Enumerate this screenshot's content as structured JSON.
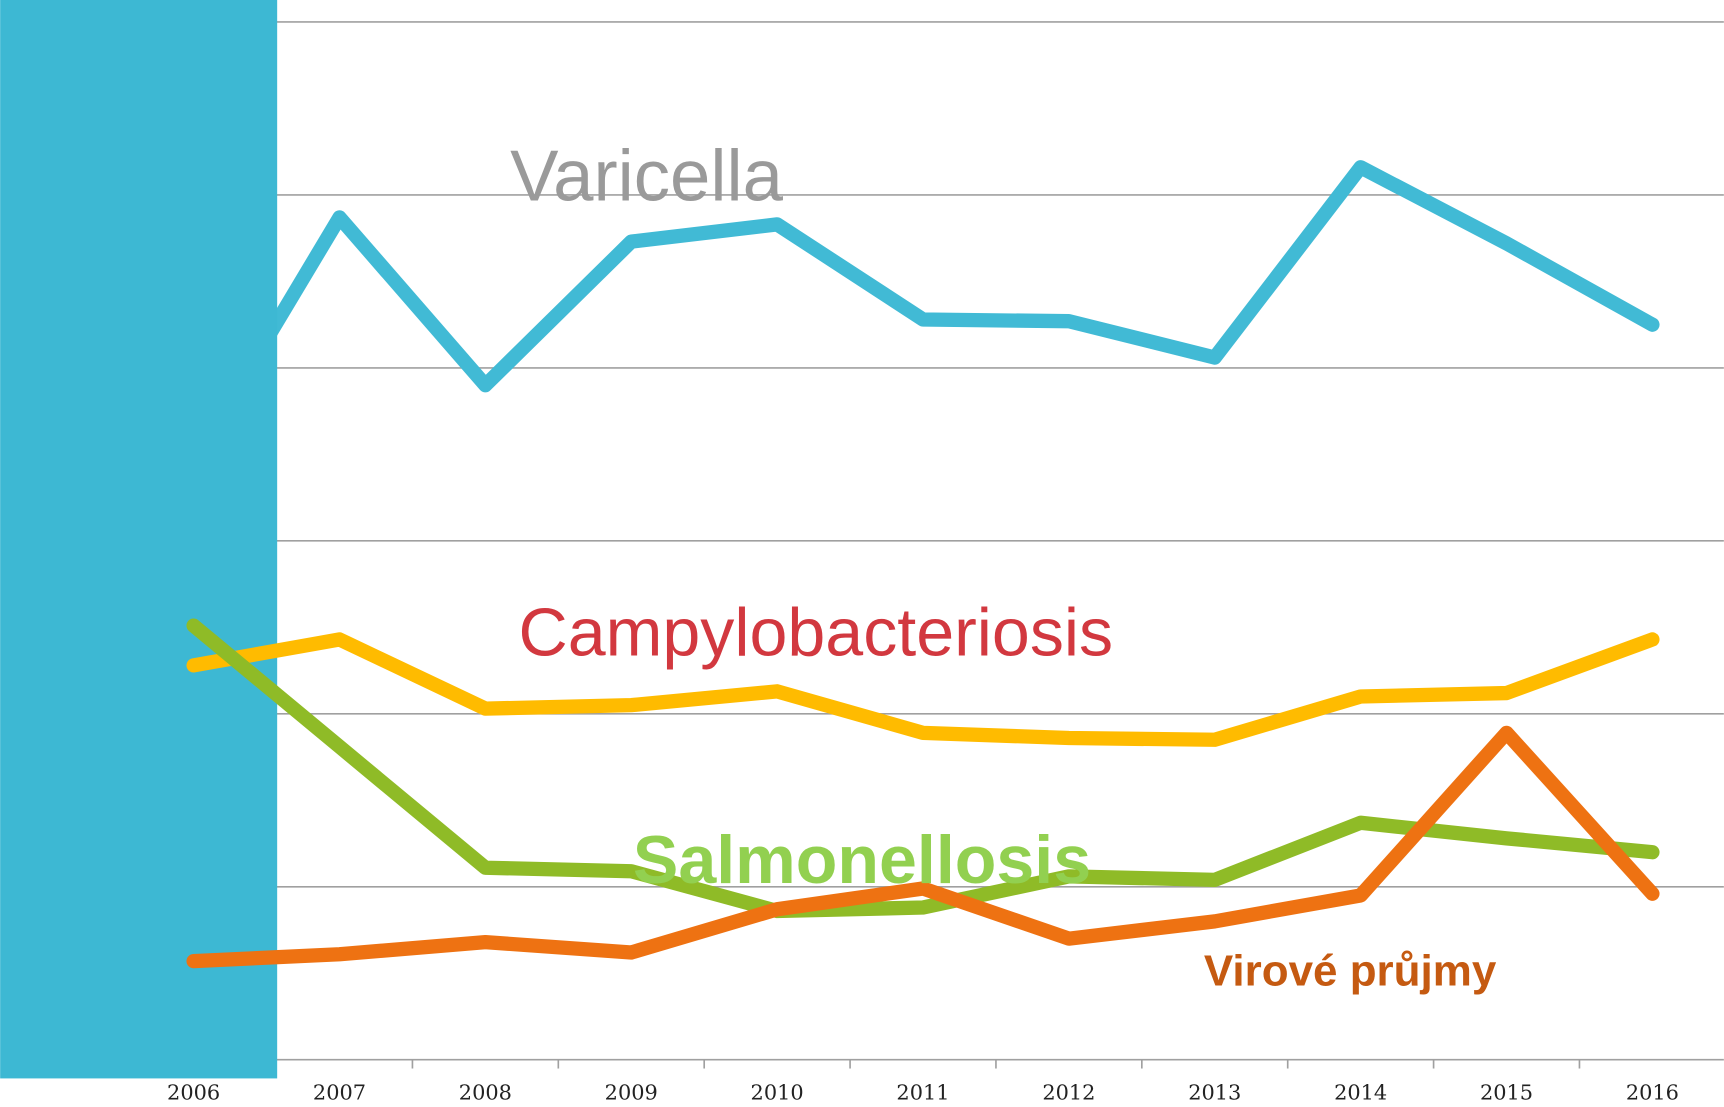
{
  "chart_data": {
    "type": "line",
    "categories": [
      "2006",
      "2007",
      "2008",
      "2009",
      "2010",
      "2011",
      "2012",
      "2013",
      "2014",
      "2015",
      "2016"
    ],
    "series": [
      {
        "name": "Varicella",
        "color": "#41bad5",
        "label_color": "#9a9a9a",
        "values": [
          34600,
          48700,
          39000,
          47300,
          48300,
          42800,
          42700,
          40600,
          51600,
          47200,
          42500
        ]
      },
      {
        "name": "Campylobacteriosis",
        "color": "#ffbb00",
        "label_color": "#d2383f",
        "values": [
          22800,
          24300,
          20300,
          20500,
          21300,
          18900,
          18600,
          18500,
          21000,
          21200,
          24300
        ]
      },
      {
        "name": "Salmonellosis",
        "color": "#8fbb27",
        "label_color": "#92d050",
        "values": [
          25100,
          18100,
          11100,
          10900,
          8600,
          8800,
          10600,
          10400,
          13700,
          12800,
          12000
        ]
      },
      {
        "name": "Virové  průjmy",
        "color": "#ee7212",
        "label_color": "#c55a11",
        "values": [
          5700,
          6100,
          6800,
          6200,
          8700,
          9900,
          7000,
          8000,
          9500,
          18900,
          9600
        ]
      }
    ],
    "ylim": [
      0,
      60000
    ],
    "yticks": [
      0,
      10000,
      20000,
      30000,
      40000,
      50000,
      60000
    ],
    "grid": true
  }
}
